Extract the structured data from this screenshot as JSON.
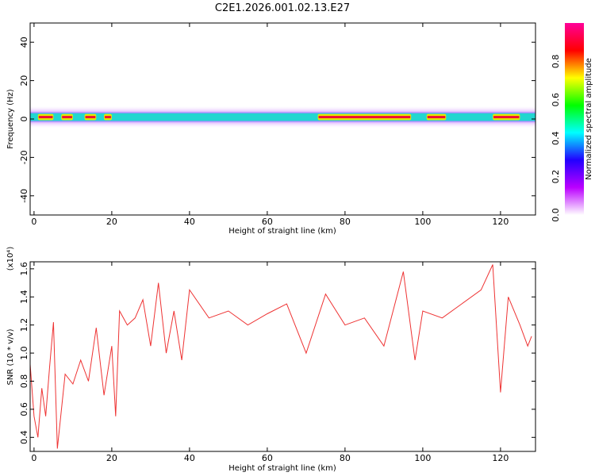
{
  "figure": {
    "title": "C2E1.2026.001.02.13.E27"
  },
  "chart_data": [
    {
      "type": "heatmap",
      "xlabel": "Height of straight line (km)",
      "ylabel": "Frequency (Hz)",
      "xlim": [
        -1,
        129
      ],
      "ylim": [
        -50,
        50
      ],
      "xticks": [
        0,
        20,
        40,
        60,
        80,
        100,
        120
      ],
      "yticks": [
        40,
        20,
        0,
        -20,
        -40
      ],
      "colorbar": {
        "label": "Normalized spectral amplitude",
        "range": [
          0,
          1
        ],
        "ticks": [
          "0.0",
          "0.2",
          "0.4",
          "0.6",
          "0.8"
        ],
        "stops": [
          "#ffffff",
          "#bb00ff",
          "#2200ff",
          "#00ffff",
          "#00ff00",
          "#ffff00",
          "#ff0000",
          "#ff0099"
        ]
      },
      "band": {
        "center_hz": 1,
        "core_halfwidth_hz": 2,
        "outer_halfwidth_hz": 6
      },
      "hot_segments_km": [
        [
          1,
          5
        ],
        [
          7,
          10
        ],
        [
          13,
          16
        ],
        [
          18,
          20
        ],
        [
          73,
          97
        ],
        [
          101,
          106
        ],
        [
          118,
          125
        ]
      ]
    },
    {
      "type": "line",
      "xlabel": "Height of straight line (km)",
      "ylabel": "SNR (10 * v/v)",
      "scale_label": "(x10⁴)",
      "xlim": [
        -1,
        129
      ],
      "ylim": [
        0.3,
        1.65
      ],
      "xticks": [
        0,
        20,
        40,
        60,
        80,
        100,
        120
      ],
      "yticks": [
        "0.4",
        "0.6",
        "0.8",
        "1.0",
        "1.2",
        "1.4",
        "1.6"
      ],
      "color": "#ee3333",
      "series": [
        {
          "x": [
            -1,
            0,
            1,
            2,
            3,
            4,
            5,
            6,
            8,
            10,
            12,
            14,
            16,
            18,
            20,
            21,
            22,
            24,
            26,
            28,
            30,
            32,
            34,
            36,
            38,
            40,
            45,
            50,
            55,
            60,
            65,
            70,
            75,
            80,
            85,
            90,
            95,
            98,
            100,
            105,
            110,
            115,
            118,
            120,
            122,
            125,
            127,
            128
          ],
          "y": [
            0.92,
            0.55,
            0.4,
            0.75,
            0.55,
            0.9,
            1.22,
            0.32,
            0.85,
            0.78,
            0.95,
            0.8,
            1.18,
            0.7,
            1.05,
            0.55,
            1.3,
            1.2,
            1.25,
            1.38,
            1.05,
            1.5,
            1.0,
            1.3,
            0.95,
            1.45,
            1.25,
            1.3,
            1.2,
            1.28,
            1.35,
            1.0,
            1.42,
            1.2,
            1.25,
            1.05,
            1.58,
            0.95,
            1.3,
            1.25,
            1.35,
            1.45,
            1.63,
            0.72,
            1.4,
            1.2,
            1.05,
            1.12
          ]
        }
      ]
    }
  ]
}
